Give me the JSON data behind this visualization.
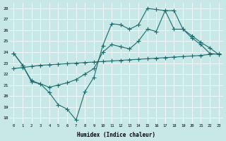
{
  "xlabel": "Humidex (Indice chaleur)",
  "bg_color": "#c8e8e8",
  "line_color": "#1a6b6b",
  "ylim": [
    17.5,
    28.5
  ],
  "xlim": [
    -0.5,
    23.5
  ],
  "yticks": [
    18,
    19,
    20,
    21,
    22,
    23,
    24,
    25,
    26,
    27,
    28
  ],
  "xticks": [
    0,
    1,
    2,
    3,
    4,
    5,
    6,
    7,
    8,
    9,
    10,
    11,
    12,
    13,
    14,
    15,
    16,
    17,
    18,
    19,
    20,
    21,
    22,
    23
  ],
  "line1_x": [
    0,
    1,
    2,
    3,
    4,
    5,
    6,
    7,
    8,
    9,
    10,
    11,
    12,
    13,
    14,
    15,
    16,
    17,
    18,
    19,
    20,
    21,
    22,
    23
  ],
  "line1_y": [
    23.9,
    22.8,
    21.3,
    21.1,
    20.3,
    19.2,
    18.8,
    17.8,
    20.4,
    21.7,
    24.6,
    26.6,
    26.5,
    26.1,
    26.5,
    28.0,
    27.9,
    27.8,
    27.8,
    26.1,
    25.3,
    24.7,
    23.9,
    23.8
  ],
  "line2_x": [
    0,
    1,
    2,
    3,
    4,
    5,
    6,
    7,
    8,
    9,
    10,
    11,
    12,
    13,
    14,
    15,
    16,
    17,
    18,
    19,
    20,
    21,
    22,
    23
  ],
  "line2_y": [
    22.5,
    22.6,
    22.7,
    22.8,
    22.85,
    22.9,
    22.95,
    23.0,
    23.05,
    23.1,
    23.15,
    23.2,
    23.25,
    23.3,
    23.35,
    23.4,
    23.45,
    23.5,
    23.55,
    23.6,
    23.65,
    23.7,
    23.8,
    23.85
  ],
  "line3_x": [
    0,
    1,
    2,
    3,
    4,
    5,
    6,
    7,
    8,
    9,
    10,
    11,
    12,
    13,
    14,
    15,
    16,
    17,
    18,
    19,
    20,
    21,
    22,
    23
  ],
  "line3_y": [
    23.9,
    22.8,
    21.4,
    21.1,
    20.8,
    21.0,
    21.2,
    21.5,
    22.0,
    22.5,
    24.0,
    24.7,
    24.5,
    24.3,
    25.0,
    26.1,
    25.9,
    27.8,
    26.1,
    26.1,
    25.5,
    24.9,
    24.4,
    23.8
  ]
}
